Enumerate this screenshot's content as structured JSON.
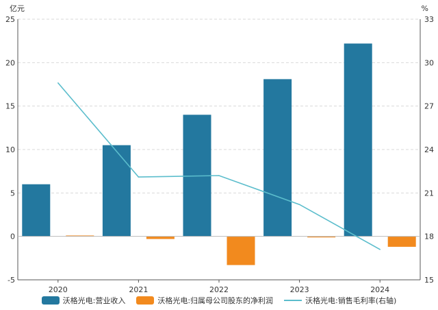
{
  "chart_data": {
    "type": "bar",
    "categories": [
      "2020",
      "2021",
      "2022",
      "2023",
      "2024"
    ],
    "left_axis": {
      "unit": "亿元",
      "ylim": [
        -5,
        25
      ],
      "ticks": [
        "25",
        "20",
        "15",
        "10",
        "5",
        "0",
        "-5"
      ]
    },
    "right_axis": {
      "unit": "%",
      "ylim": [
        15,
        33
      ],
      "ticks": [
        "33",
        "30",
        "27",
        "24",
        "21",
        "18",
        "15"
      ]
    },
    "grid": true,
    "legend_position": "bottom",
    "series": [
      {
        "name": "沃格光电:营业收入",
        "type": "bar",
        "axis": "left",
        "color": "#23789f",
        "values": [
          6.0,
          10.5,
          14.0,
          18.1,
          22.2
        ]
      },
      {
        "name": "沃格光电:归属母公司股东的净利润",
        "type": "bar",
        "axis": "left",
        "color": "#f28a1e",
        "values": [
          0.1,
          -0.3,
          -3.3,
          -0.1,
          -1.2
        ]
      },
      {
        "name": "沃格光电:销售毛利率(右轴)",
        "type": "line",
        "axis": "right",
        "color": "#5bbdcc",
        "values": [
          28.6,
          22.1,
          22.2,
          20.2,
          17.1
        ]
      }
    ]
  }
}
